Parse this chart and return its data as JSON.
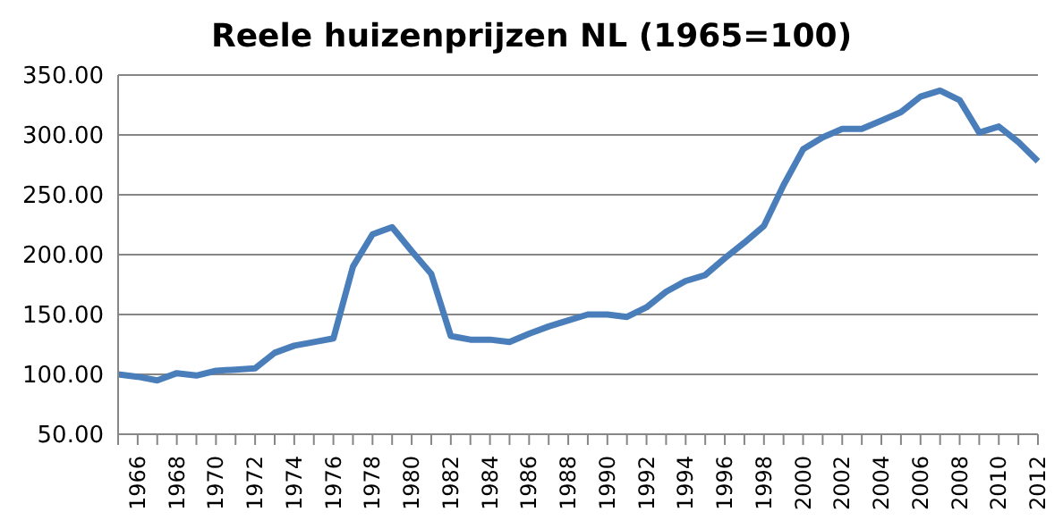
{
  "chart_data": {
    "type": "line",
    "title": "Reele huizenprijzen NL (1965=100)",
    "categories": [
      null,
      "1966",
      null,
      "1968",
      null,
      "1970",
      null,
      "1972",
      null,
      "1974",
      null,
      "1976",
      null,
      "1978",
      null,
      "1980",
      null,
      "1982",
      null,
      "1984",
      null,
      "1986",
      null,
      "1988",
      null,
      "1990",
      null,
      "1992",
      null,
      "1994",
      null,
      "1996",
      null,
      "1998",
      null,
      "2000",
      null,
      "2002",
      null,
      "2004",
      null,
      "2006",
      null,
      "2008",
      null,
      "2010",
      null,
      "2012"
    ],
    "series": [
      {
        "color": "#4a7ebb",
        "values": [
          100,
          98,
          95,
          101,
          99,
          103,
          104,
          105,
          118,
          124,
          127,
          130,
          190,
          217,
          223,
          203,
          184,
          132,
          129,
          129,
          127,
          134,
          140,
          145,
          150,
          150,
          148,
          156,
          169,
          178,
          183,
          197,
          210,
          224,
          258,
          288,
          298,
          305,
          305,
          312,
          319,
          332,
          337,
          329,
          302,
          307,
          294,
          278
        ]
      }
    ],
    "ylim": [
      50,
      350
    ],
    "yticks": [
      {
        "value": 50,
        "label": "50.00"
      },
      {
        "value": 100,
        "label": "100.00"
      },
      {
        "value": 150,
        "label": "150.00"
      },
      {
        "value": 200,
        "label": "200.00"
      },
      {
        "value": 250,
        "label": "250.00"
      },
      {
        "value": 300,
        "label": "300.00"
      },
      {
        "value": 350,
        "label": "350.00"
      }
    ],
    "grid": "y",
    "legend": false,
    "marker": "none",
    "line_style": "solid"
  }
}
